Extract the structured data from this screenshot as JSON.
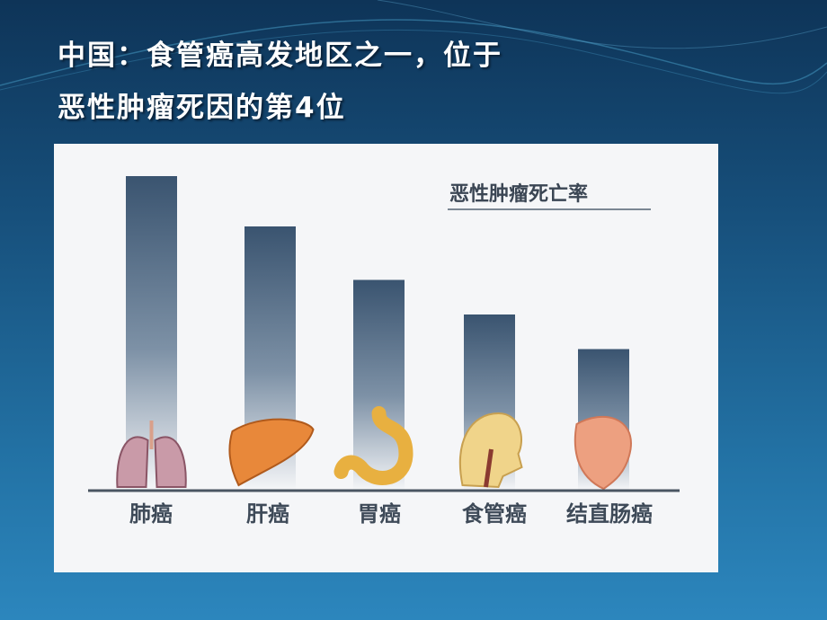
{
  "slide": {
    "title_line1": "中国：食管癌高发地区之一，位于",
    "title_line2": "恶性肿瘤死因的第4位"
  },
  "colors": {
    "bar_top": "#3a5470",
    "background": "#17507c",
    "title": "#ffffff"
  },
  "chart_data": {
    "type": "bar",
    "title": "恶性肿瘤死亡率",
    "categories": [
      "肺癌",
      "肝癌",
      "胃癌",
      "食管癌",
      "结直肠癌"
    ],
    "values": [
      100,
      84,
      67,
      56,
      45
    ],
    "value_note": "relative bar heights, no axis printed",
    "icons": [
      "lungs-icon",
      "liver-icon",
      "stomach-icon",
      "head-esophagus-icon",
      "intestine-icon"
    ],
    "ylim": [
      0,
      100
    ],
    "grid": false,
    "legend": "none"
  }
}
